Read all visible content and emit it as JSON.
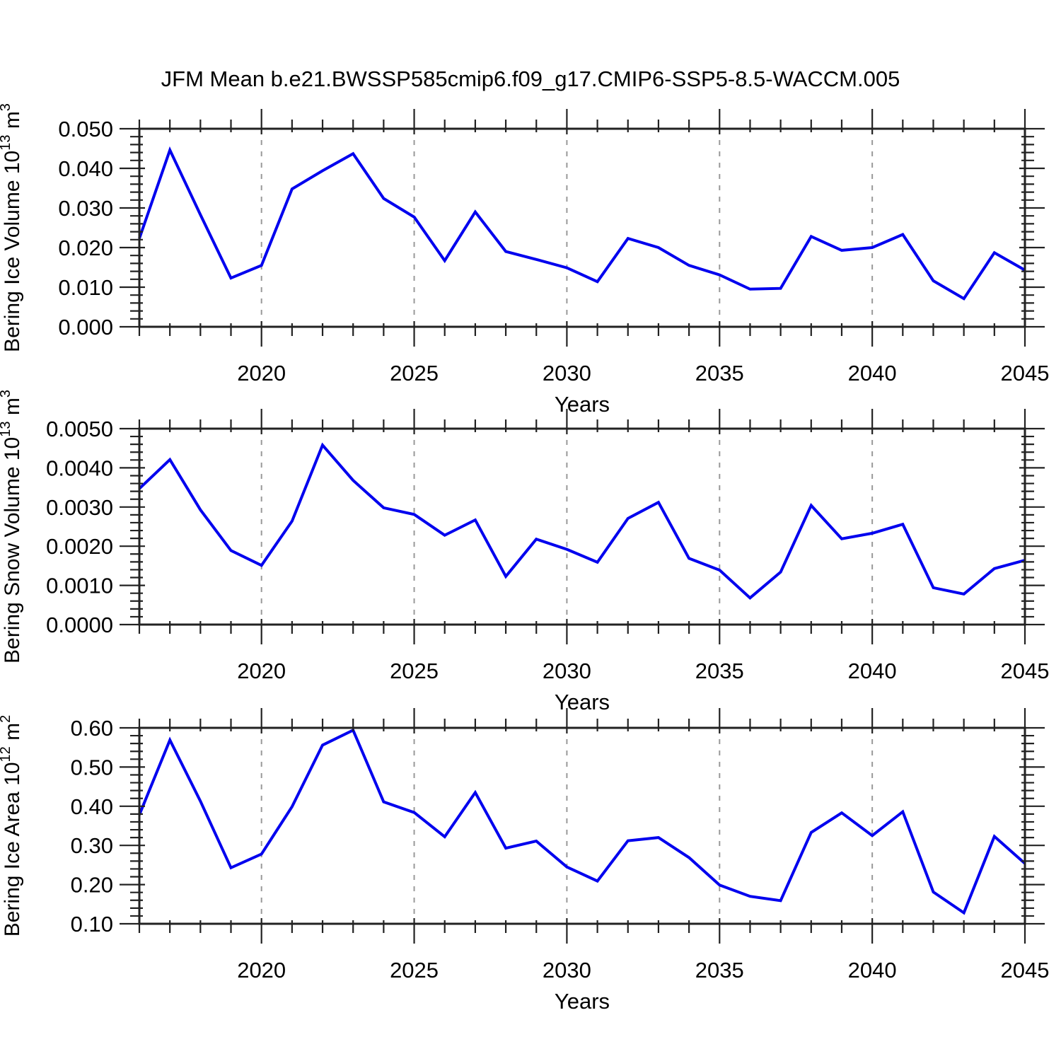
{
  "title": "JFM Mean b.e21.BWSSP585cmip6.f09_g17.CMIP6-SSP5-8.5-WACCM.005",
  "colors": {
    "line": "#0000ee",
    "frame": "#222222",
    "grid": "#999999",
    "text": "#000000"
  },
  "x_axis": {
    "label": "Years",
    "start": 2016,
    "end": 2045,
    "major_ticks": [
      2020,
      2025,
      2030,
      2035,
      2040,
      2045
    ],
    "tick_labels": [
      "2020",
      "2025",
      "2030",
      "2035",
      "2040",
      "2045"
    ],
    "minor_step": 1,
    "gridlines": [
      2020,
      2025,
      2030,
      2035,
      2040
    ],
    "years": [
      2016,
      2017,
      2018,
      2019,
      2020,
      2021,
      2022,
      2023,
      2024,
      2025,
      2026,
      2027,
      2028,
      2029,
      2030,
      2031,
      2032,
      2033,
      2034,
      2035,
      2036,
      2037,
      2038,
      2039,
      2040,
      2041,
      2042,
      2043,
      2044,
      2045
    ]
  },
  "chart_data": [
    {
      "name": "bering-ice-volume",
      "type": "line",
      "ylabel": "Bering Ice Volume 10^13 m^3",
      "ylabel_segments": [
        [
          "Bering Ice Volume 10",
          0
        ],
        [
          "13",
          1
        ],
        [
          " m",
          0
        ],
        [
          "3",
          1
        ]
      ],
      "ylim": [
        0.0,
        0.05
      ],
      "ytick_step": 0.01,
      "yminor_step": 0.002,
      "ytick_decimals": 3,
      "grid": true,
      "legend": "none",
      "values": [
        0.0223,
        0.0446,
        0.0283,
        0.0123,
        0.0155,
        0.0348,
        0.0394,
        0.0437,
        0.0324,
        0.0277,
        0.0167,
        0.029,
        0.019,
        0.017,
        0.0149,
        0.0114,
        0.0223,
        0.02,
        0.0155,
        0.0131,
        0.0095,
        0.0097,
        0.0228,
        0.0193,
        0.02,
        0.0233,
        0.0116,
        0.0071,
        0.0187,
        0.0143
      ]
    },
    {
      "name": "bering-snow-volume",
      "type": "line",
      "ylabel": "Bering Snow Volume 10^13 m^3",
      "ylabel_segments": [
        [
          "Bering Snow Volume 10",
          0
        ],
        [
          "13",
          1
        ],
        [
          " m",
          0
        ],
        [
          "3",
          1
        ]
      ],
      "ylim": [
        0.0,
        0.005
      ],
      "ytick_step": 0.001,
      "yminor_step": 0.0002,
      "ytick_decimals": 4,
      "grid": true,
      "legend": "none",
      "values": [
        0.00347,
        0.00421,
        0.00293,
        0.00189,
        0.00151,
        0.00264,
        0.00458,
        0.00368,
        0.00298,
        0.00281,
        0.00228,
        0.00267,
        0.00123,
        0.00218,
        0.00192,
        0.00159,
        0.00271,
        0.00312,
        0.00169,
        0.00139,
        0.00068,
        0.00134,
        0.00304,
        0.00219,
        0.00233,
        0.00256,
        0.00094,
        0.00078,
        0.00143,
        0.00164
      ]
    },
    {
      "name": "bering-ice-area",
      "type": "line",
      "ylabel": "Bering Ice Area 10^12 m^2",
      "ylabel_segments": [
        [
          "Bering Ice Area 10",
          0
        ],
        [
          "12",
          1
        ],
        [
          " m",
          0
        ],
        [
          "2",
          1
        ]
      ],
      "ylim": [
        0.1,
        0.6
      ],
      "ytick_step": 0.1,
      "yminor_step": 0.02,
      "ytick_decimals": 2,
      "grid": true,
      "legend": "none",
      "values": [
        0.378,
        0.569,
        0.413,
        0.243,
        0.278,
        0.399,
        0.556,
        0.594,
        0.411,
        0.384,
        0.322,
        0.435,
        0.293,
        0.311,
        0.245,
        0.209,
        0.312,
        0.32,
        0.269,
        0.199,
        0.17,
        0.159,
        0.333,
        0.383,
        0.325,
        0.386,
        0.181,
        0.128,
        0.323,
        0.254
      ]
    }
  ]
}
